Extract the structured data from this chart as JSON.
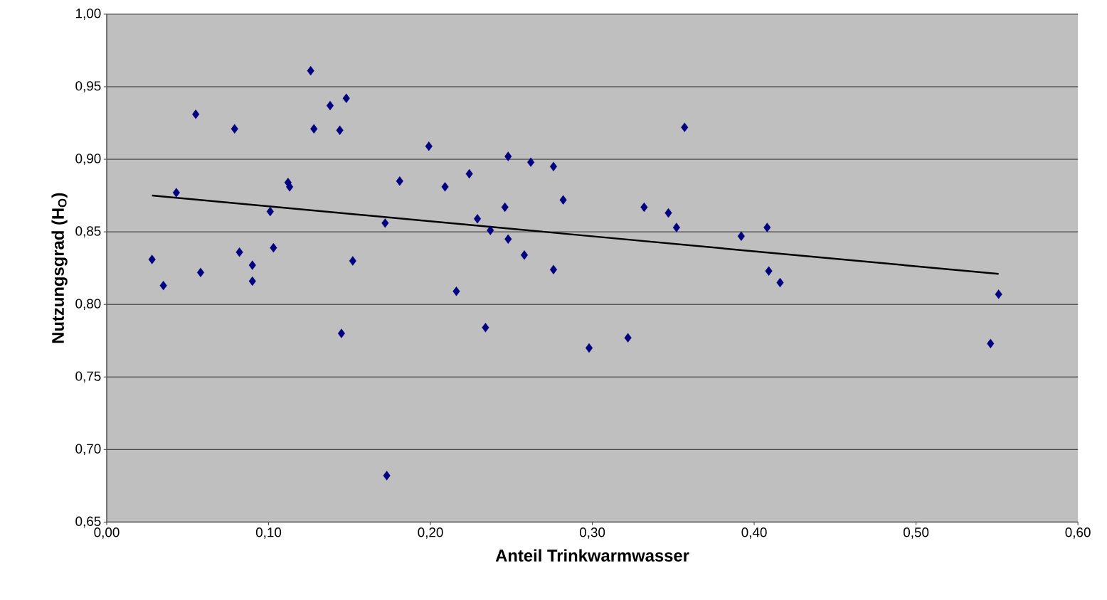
{
  "chart_data": {
    "type": "scatter",
    "xlabel": "Anteil Trinkwarmwasser",
    "ylabel": "Nutzungsgrad (H$_{O}$)",
    "xlim": [
      0,
      0.6
    ],
    "ylim": [
      0.65,
      1.0
    ],
    "xticks": [
      {
        "value": 0,
        "label": "0,00"
      },
      {
        "value": 0.1,
        "label": "0,10"
      },
      {
        "value": 0.2,
        "label": "0,20"
      },
      {
        "value": 0.3,
        "label": "0,30"
      },
      {
        "value": 0.4,
        "label": "0,40"
      },
      {
        "value": 0.5,
        "label": "0,50"
      },
      {
        "value": 0.6,
        "label": "0,60"
      }
    ],
    "yticks": [
      {
        "value": 0.65,
        "label": "0,65"
      },
      {
        "value": 0.7,
        "label": "0,70"
      },
      {
        "value": 0.75,
        "label": "0,75"
      },
      {
        "value": 0.8,
        "label": "0,80"
      },
      {
        "value": 0.85,
        "label": "0,85"
      },
      {
        "value": 0.9,
        "label": "0,90"
      },
      {
        "value": 0.95,
        "label": "0,95"
      },
      {
        "value": 1.0,
        "label": "1,00"
      }
    ],
    "grid": "y",
    "series": [
      {
        "marker": "diamond",
        "color": "#000080",
        "x": [
          0.028,
          0.035,
          0.043,
          0.055,
          0.058,
          0.079,
          0.082,
          0.09,
          0.09,
          0.101,
          0.103,
          0.112,
          0.113,
          0.126,
          0.128,
          0.138,
          0.144,
          0.145,
          0.148,
          0.152,
          0.172,
          0.173,
          0.181,
          0.199,
          0.209,
          0.216,
          0.224,
          0.229,
          0.234,
          0.237,
          0.246,
          0.248,
          0.248,
          0.258,
          0.262,
          0.276,
          0.276,
          0.282,
          0.298,
          0.322,
          0.332,
          0.347,
          0.352,
          0.357,
          0.392,
          0.408,
          0.409,
          0.416,
          0.546,
          0.551
        ],
        "values": [
          0.831,
          0.813,
          0.877,
          0.931,
          0.822,
          0.921,
          0.836,
          0.827,
          0.816,
          0.864,
          0.839,
          0.884,
          0.881,
          0.961,
          0.921,
          0.937,
          0.92,
          0.78,
          0.942,
          0.83,
          0.856,
          0.682,
          0.885,
          0.909,
          0.881,
          0.809,
          0.89,
          0.859,
          0.784,
          0.851,
          0.867,
          0.902,
          0.845,
          0.834,
          0.898,
          0.895,
          0.824,
          0.872,
          0.77,
          0.777,
          0.867,
          0.863,
          0.853,
          0.922,
          0.847,
          0.853,
          0.823,
          0.815,
          0.773,
          0.807
        ]
      },
      {
        "type": "line",
        "marker": "none",
        "color": "#000000",
        "x": [
          0.028,
          0.551
        ],
        "values": [
          0.875,
          0.821
        ]
      }
    ]
  }
}
